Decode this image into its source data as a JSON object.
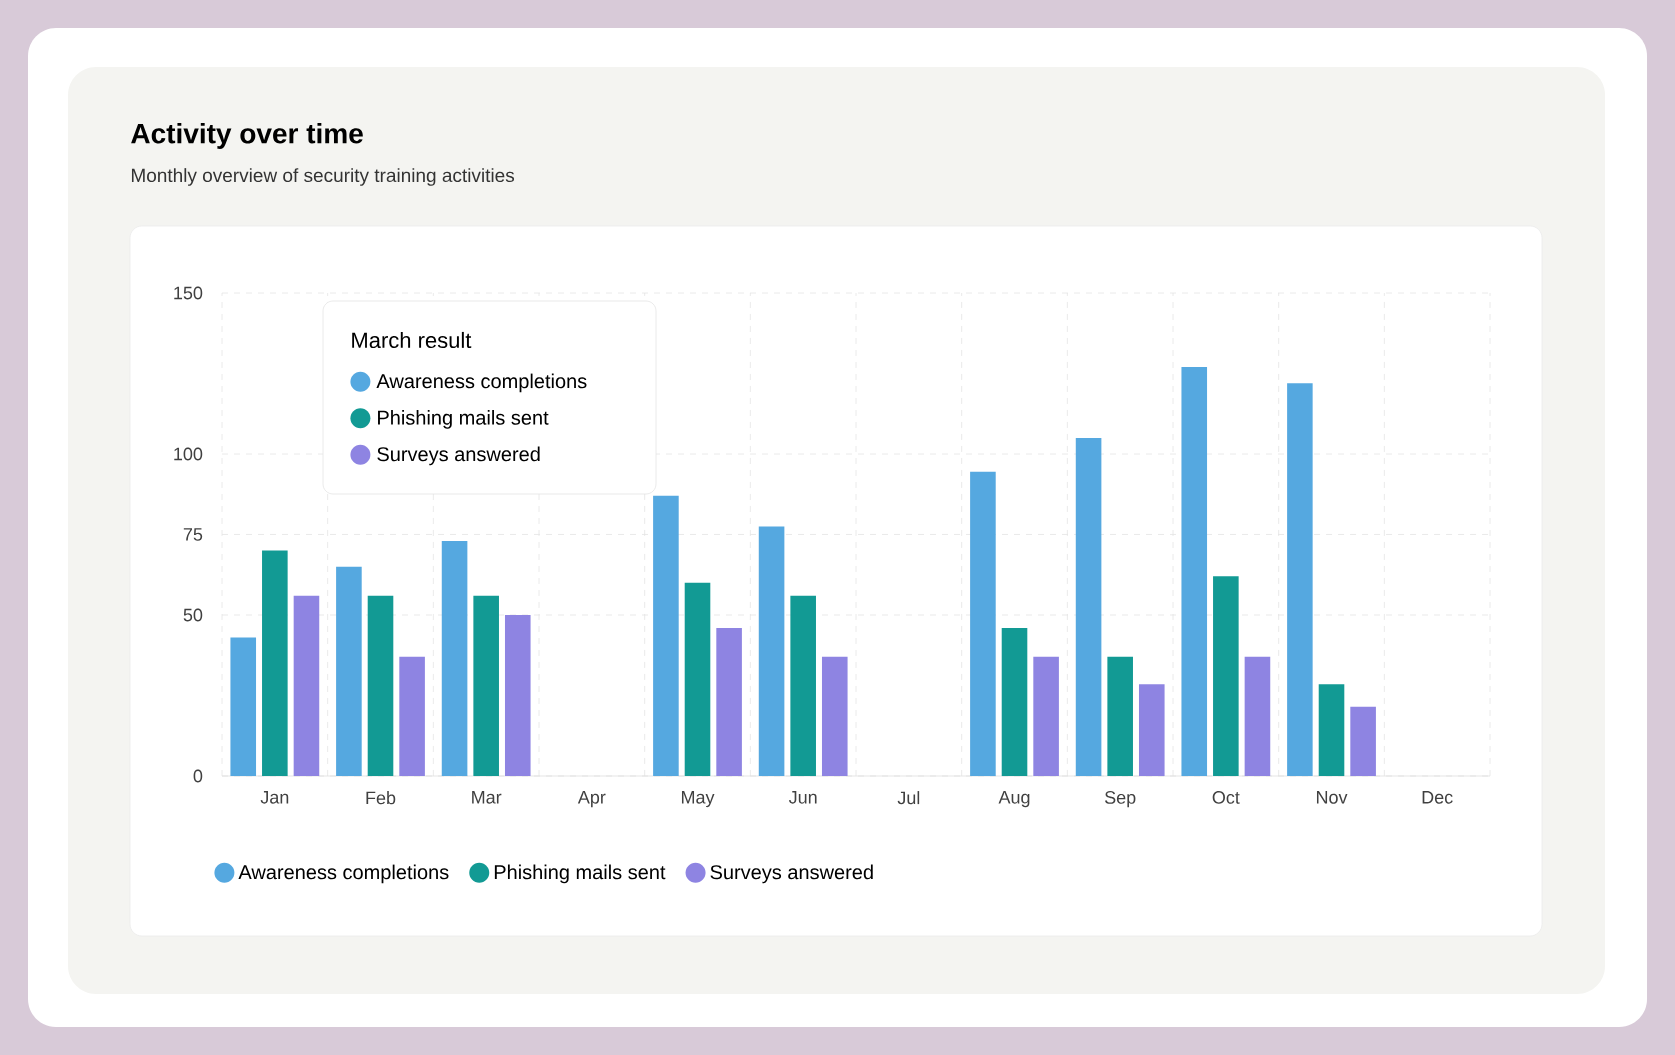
{
  "chart_data": {
    "type": "bar",
    "title": "Activity over time",
    "subtitle": "Monthly overview of security training activities",
    "categories": [
      "Jan",
      "Feb",
      "Mar",
      "Apr",
      "May",
      "Jun",
      "Jul",
      "Aug",
      "Sep",
      "Oct",
      "Nov",
      "Dec"
    ],
    "series": [
      {
        "name": "Awareness completions",
        "color": "#55a8e0",
        "values": [
          43,
          65,
          73,
          null,
          87,
          77.5,
          null,
          94.5,
          105,
          127,
          122,
          null
        ]
      },
      {
        "name": "Phishing mails sent",
        "color": "#129a94",
        "values": [
          70,
          56,
          56,
          null,
          60,
          56,
          null,
          46,
          37,
          62,
          28.5,
          null
        ]
      },
      {
        "name": "Surveys answered",
        "color": "#8e84e2",
        "values": [
          56,
          37,
          50,
          null,
          46,
          37,
          null,
          37,
          28.5,
          37,
          21.5,
          null
        ]
      }
    ],
    "ylim": [
      0,
      150
    ],
    "yticks": [
      0,
      50,
      75,
      100,
      150
    ],
    "grid": true,
    "legend": "bottom",
    "annotations": [
      "March result"
    ]
  }
}
